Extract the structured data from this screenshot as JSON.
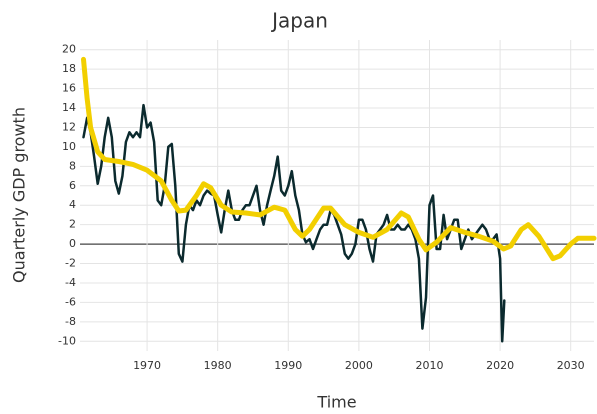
{
  "chart_data": {
    "type": "line",
    "title": "Japan",
    "x_label": "Time",
    "y_label": "Quarterly GDP growth",
    "xlim": [
      1960.5,
      2033.3
    ],
    "ylim": [
      -11,
      21
    ],
    "xticks": [
      1970,
      1980,
      1990,
      2000,
      2010,
      2020,
      2030
    ],
    "yticks": [
      -10,
      -8,
      -6,
      -4,
      -2,
      0,
      2,
      4,
      6,
      8,
      10,
      12,
      14,
      16,
      18,
      20
    ],
    "grid": true,
    "series": [
      {
        "color": "#0b2a2e",
        "x": [
          1961,
          1961.5,
          1962,
          1962.5,
          1963,
          1963.5,
          1964,
          1964.5,
          1965,
          1965.5,
          1966,
          1966.5,
          1967,
          1967.5,
          1968,
          1968.5,
          1969,
          1969.5,
          1970,
          1970.5,
          1971,
          1971.5,
          1972,
          1972.5,
          1973,
          1973.5,
          1974,
          1974.5,
          1975,
          1975.5,
          1976,
          1976.5,
          1977,
          1977.5,
          1978,
          1978.5,
          1979,
          1979.5,
          1980,
          1980.5,
          1981,
          1981.5,
          1982,
          1982.5,
          1983,
          1983.5,
          1984,
          1984.5,
          1985,
          1985.5,
          1986,
          1986.5,
          1987,
          1987.5,
          1988,
          1988.5,
          1989,
          1989.5,
          1990,
          1990.5,
          1991,
          1991.5,
          1992,
          1992.5,
          1993,
          1993.5,
          1994,
          1994.5,
          1995,
          1995.5,
          1996,
          1996.5,
          1997,
          1997.5,
          1998,
          1998.5,
          1999,
          1999.5,
          2000,
          2000.5,
          2001,
          2001.5,
          2002,
          2002.5,
          2003,
          2003.5,
          2004,
          2004.5,
          2005,
          2005.5,
          2006,
          2006.5,
          2007,
          2007.5,
          2008,
          2008.5,
          2009,
          2009.5,
          2010,
          2010.5,
          2011,
          2011.5,
          2012,
          2012.5,
          2013,
          2013.5,
          2014,
          2014.5,
          2015,
          2015.5,
          2016,
          2016.5,
          2017,
          2017.5,
          2018,
          2018.5,
          2019,
          2019.5,
          2020,
          2020.3,
          2020.6
        ],
        "values": [
          11,
          13,
          11.5,
          9,
          6.2,
          8,
          11,
          13,
          11,
          6.5,
          5.2,
          7,
          10.5,
          11.5,
          11,
          11.5,
          11,
          14.3,
          12,
          12.5,
          10.5,
          4.5,
          4,
          6,
          10,
          10.3,
          6,
          -1,
          -1.8,
          2,
          4,
          3.5,
          4.5,
          4,
          5,
          5.5,
          5.2,
          5,
          3,
          1.2,
          3.5,
          5.5,
          3.5,
          2.5,
          2.5,
          3.5,
          4,
          4,
          5,
          6,
          3.5,
          2,
          4,
          5.5,
          7,
          9,
          5.5,
          5,
          6,
          7.5,
          5,
          3.5,
          1,
          0.2,
          0.5,
          -0.5,
          0.5,
          1.5,
          2,
          2,
          3.5,
          3,
          2,
          1,
          -1,
          -1.5,
          -1,
          0,
          2.5,
          2.5,
          1.5,
          -0.5,
          -1.8,
          1,
          1.5,
          2,
          3,
          1.5,
          1.5,
          2,
          1.5,
          1.5,
          2,
          1.5,
          0.5,
          -1.5,
          -8.7,
          -5.5,
          4,
          5,
          -0.5,
          -0.5,
          3,
          0.5,
          1.5,
          2.5,
          2.5,
          -0.5,
          0.5,
          1.5,
          0.5,
          1,
          1.5,
          2,
          1.5,
          0.5,
          0.5,
          1,
          -1.5,
          -10,
          -5.8
        ]
      },
      {
        "color": "#f2cf00",
        "x": [
          1961,
          1961.5,
          1962,
          1963,
          1964,
          1966,
          1968,
          1970,
          1972,
          1973.5,
          1974.5,
          1975.5,
          1977,
          1978,
          1979,
          1980.5,
          1982,
          1984,
          1986,
          1988,
          1989.5,
          1991,
          1992,
          1993,
          1995,
          1996,
          1998,
          2000,
          2002,
          2004,
          2006,
          2007,
          2008.5,
          2009.5,
          2011,
          2013,
          2015,
          2017,
          2019,
          2020.5,
          2021.5,
          2023,
          2024,
          2025.5,
          2027.5,
          2028.5,
          2030,
          2031,
          2033.3
        ],
        "values": [
          19,
          15,
          12,
          9.5,
          8.7,
          8.5,
          8.2,
          7.6,
          6.5,
          4.5,
          3.4,
          3.5,
          5,
          6.2,
          5.8,
          4,
          3.3,
          3.2,
          3,
          3.8,
          3.5,
          1.5,
          0.8,
          1.5,
          3.7,
          3.7,
          2,
          1.2,
          0.7,
          1.5,
          3.2,
          2.8,
          0.5,
          -0.6,
          0.2,
          1.7,
          1.2,
          0.8,
          0.3,
          -0.5,
          -0.2,
          1.5,
          2,
          0.8,
          -1.5,
          -1.2,
          0,
          0.6,
          0.6
        ]
      }
    ]
  }
}
